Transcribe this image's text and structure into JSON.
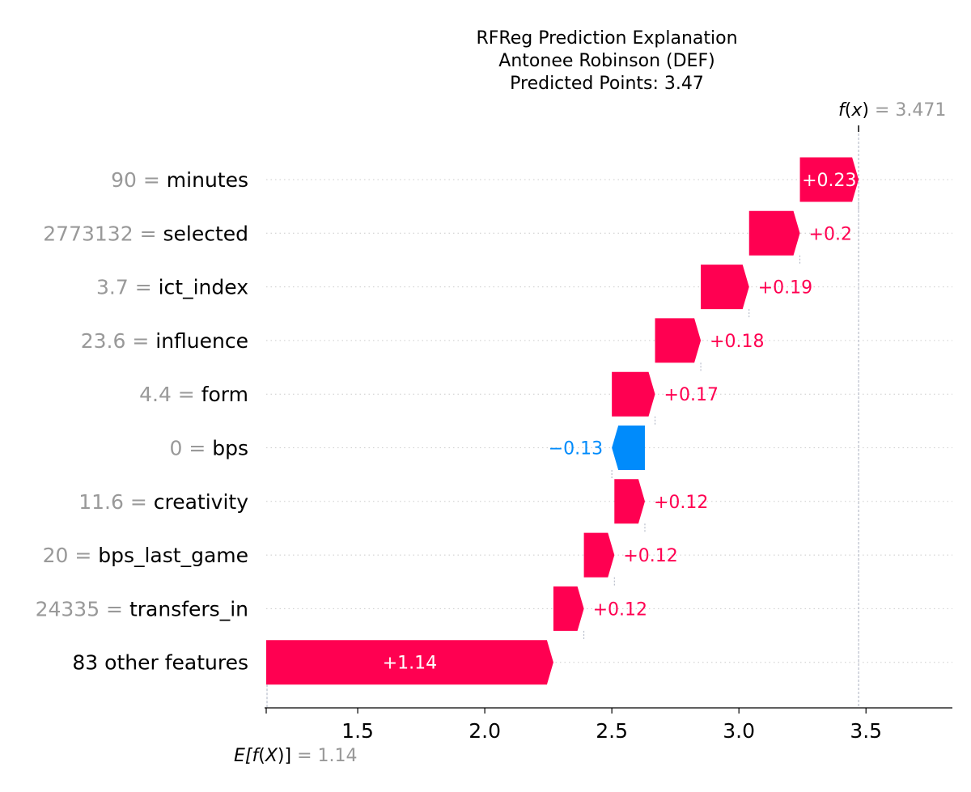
{
  "title_lines": [
    "RFReg Prediction Explanation",
    "Antonee Robinson (DEF)",
    "Predicted Points: 3.47"
  ],
  "fx": {
    "label_fn": "f",
    "label_arg": "x",
    "value": "3.471"
  },
  "efx": {
    "label_pre": "E[",
    "label_fn": "f",
    "label_arg": "X",
    "label_post": "]",
    "value": "1.14"
  },
  "colors": {
    "positive": "#ff0051",
    "negative": "#008bfb",
    "feature_value": "#999999",
    "feature_name": "#000000",
    "grid": "#cccccc"
  },
  "chart_data": {
    "type": "waterfall",
    "base_value": 1.14,
    "output_value": 3.471,
    "xlim": [
      1.14,
      3.84
    ],
    "xticks": [
      {
        "value": 1.5,
        "label": "1.5"
      },
      {
        "value": 2.0,
        "label": "2.0"
      },
      {
        "value": 2.5,
        "label": "2.5"
      },
      {
        "value": 3.0,
        "label": "3.0"
      },
      {
        "value": 3.5,
        "label": "3.5"
      }
    ],
    "features": [
      {
        "value": "90",
        "name": "minutes",
        "contribution": 0.23,
        "label": "+0.23",
        "start": 3.24,
        "end": 3.471
      },
      {
        "value": "2773132",
        "name": "selected",
        "contribution": 0.2,
        "label": "+0.2",
        "start": 3.04,
        "end": 3.24
      },
      {
        "value": "3.7",
        "name": "ict_index",
        "contribution": 0.19,
        "label": "+0.19",
        "start": 2.85,
        "end": 3.04
      },
      {
        "value": "23.6",
        "name": "influence",
        "contribution": 0.18,
        "label": "+0.18",
        "start": 2.67,
        "end": 2.85
      },
      {
        "value": "4.4",
        "name": "form",
        "contribution": 0.17,
        "label": "+0.17",
        "start": 2.5,
        "end": 2.67
      },
      {
        "value": "0",
        "name": "bps",
        "contribution": -0.13,
        "label": "−0.13",
        "start": 2.63,
        "end": 2.5
      },
      {
        "value": "11.6",
        "name": "creativity",
        "contribution": 0.12,
        "label": "+0.12",
        "start": 2.51,
        "end": 2.63
      },
      {
        "value": "20",
        "name": "bps_last_game",
        "contribution": 0.12,
        "label": "+0.12",
        "start": 2.39,
        "end": 2.51
      },
      {
        "value": "24335",
        "name": "transfers_in",
        "contribution": 0.12,
        "label": "+0.12",
        "start": 2.27,
        "end": 2.39
      },
      {
        "value": "",
        "name": "83 other features",
        "contribution": 1.14,
        "label": "+1.14",
        "start": 1.14,
        "end": 2.27
      }
    ]
  }
}
